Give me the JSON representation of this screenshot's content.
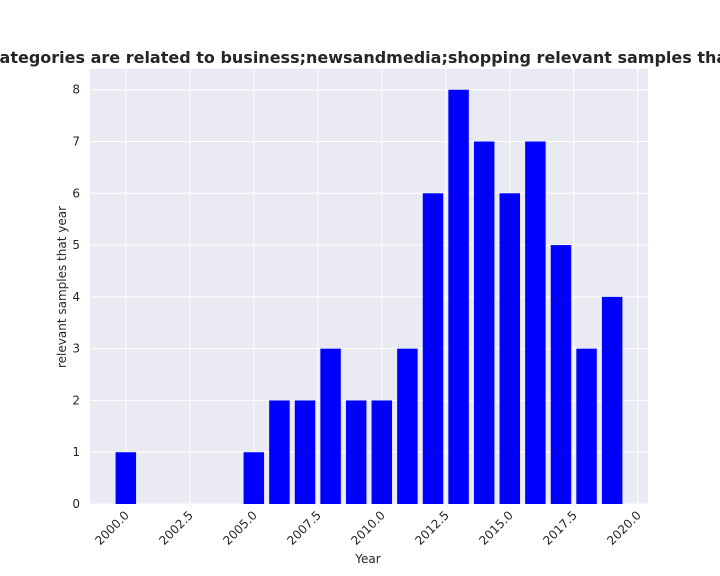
{
  "chart_data": {
    "type": "bar",
    "title": "Number of websites whose categories are related to business;newsandmedia;shopping relevant samples that year in privacy policy data",
    "xlabel": "Year",
    "ylabel": "relevant samples that year",
    "x": [
      2000,
      2005,
      2006,
      2007,
      2008,
      2009,
      2010,
      2011,
      2012,
      2013,
      2014,
      2015,
      2016,
      2017,
      2018,
      2019
    ],
    "values": [
      1,
      1,
      2,
      2,
      3,
      2,
      2,
      3,
      6,
      8,
      7,
      6,
      7,
      5,
      3,
      4
    ],
    "xlim": [
      1998.6,
      2020.4
    ],
    "ylim": [
      0,
      8.4
    ],
    "x_ticks": [
      2000,
      2002.5,
      2005,
      2007.5,
      2010,
      2012.5,
      2015,
      2017.5,
      2020
    ],
    "x_tick_labels": [
      "2000.0",
      "2002.5",
      "2005.0",
      "2007.5",
      "2010.0",
      "2012.5",
      "2015.0",
      "2017.5",
      "2020.0"
    ],
    "y_ticks": [
      0,
      1,
      2,
      3,
      4,
      5,
      6,
      7,
      8
    ],
    "y_tick_labels": [
      "0",
      "1",
      "2",
      "3",
      "4",
      "5",
      "6",
      "7",
      "8"
    ],
    "bar_width": 0.8,
    "bar_color": "#0000ff",
    "background_color": "#eaeaf2",
    "grid": true,
    "grid_color": "#ffffff"
  }
}
